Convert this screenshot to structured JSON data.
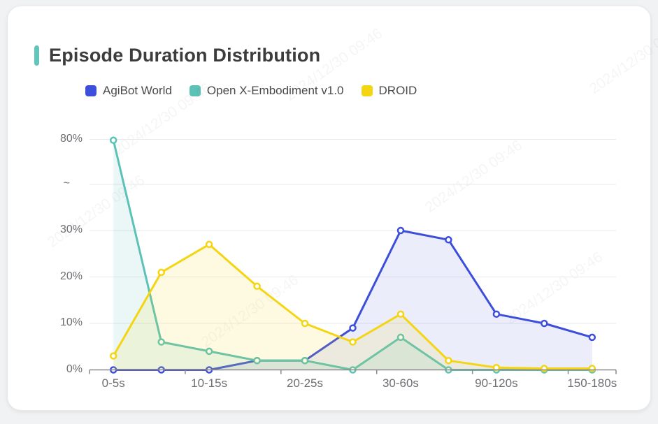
{
  "card": {
    "title": "Episode Duration Distribution",
    "accent_color": "#63c6bc"
  },
  "watermark": {
    "text": "2024/12/30 09:46"
  },
  "chart_data": {
    "type": "line",
    "title": "Episode Duration Distribution",
    "legend_position": "top-left",
    "grid": true,
    "area_fill": true,
    "num_categories": 11,
    "x_axis": {
      "visible_tick_labels": [
        "0-5s",
        "10-15s",
        "20-25s",
        "30-60s",
        "90-120s",
        "150-180s"
      ],
      "labeled_category_indices": [
        0,
        2,
        4,
        6,
        8,
        10
      ]
    },
    "y_axis": {
      "unit": "%",
      "tick_labels": [
        "0%",
        "10%",
        "20%",
        "30%",
        "~",
        "80%"
      ],
      "tick_values": [
        0,
        10,
        20,
        30,
        null,
        80
      ],
      "axis_break_between": [
        30,
        80
      ]
    },
    "series": [
      {
        "name": "AgiBot World",
        "color": "#3d4edb",
        "values": [
          0,
          0,
          0,
          2,
          2,
          9,
          30,
          28,
          12,
          10,
          7
        ]
      },
      {
        "name": "Open X-Embodiment v1.0",
        "color": "#5cc2b7",
        "values": [
          79.5,
          6,
          4,
          2,
          2,
          0,
          7,
          0,
          0,
          0,
          0
        ]
      },
      {
        "name": "DROID",
        "color": "#f4d512",
        "values": [
          3,
          21,
          27,
          18,
          10,
          6,
          12,
          2,
          0.5,
          0.3,
          0.3
        ]
      }
    ],
    "axis_color": "#8a8a8e",
    "gridline_color": "#e9e9ed"
  }
}
